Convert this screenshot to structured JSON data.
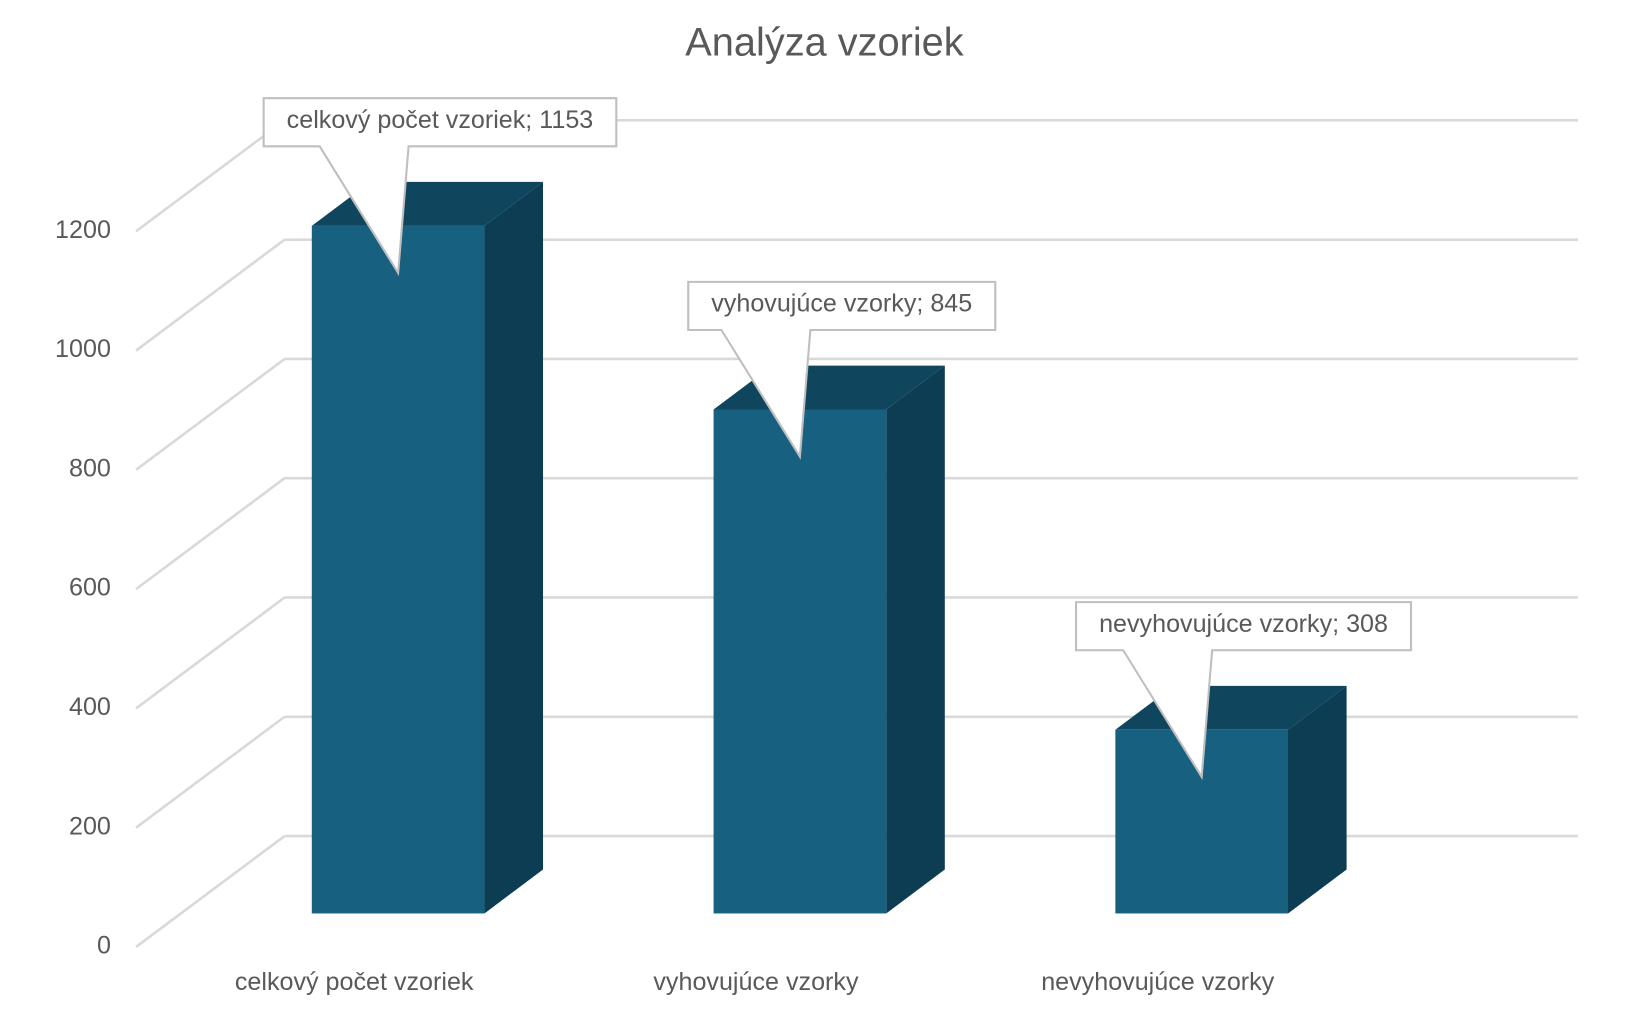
{
  "chart_data": {
    "type": "bar3d",
    "title": "Analýza vzoriek",
    "categories": [
      "celkový počet vzoriek",
      "vyhovujúce vzorky",
      "nevyhovujúce vzorky"
    ],
    "values": [
      1153,
      845,
      308
    ],
    "value_labels": [
      "celkový počet vzoriek; 1153",
      "vyhovujúce vzorky; 845",
      "nevyhovujúce vzorky; 308"
    ],
    "color": "#17607f",
    "ylim": [
      0,
      1200
    ],
    "yticks": [
      0,
      200,
      400,
      600,
      800,
      1000,
      1200
    ],
    "grid": true
  }
}
